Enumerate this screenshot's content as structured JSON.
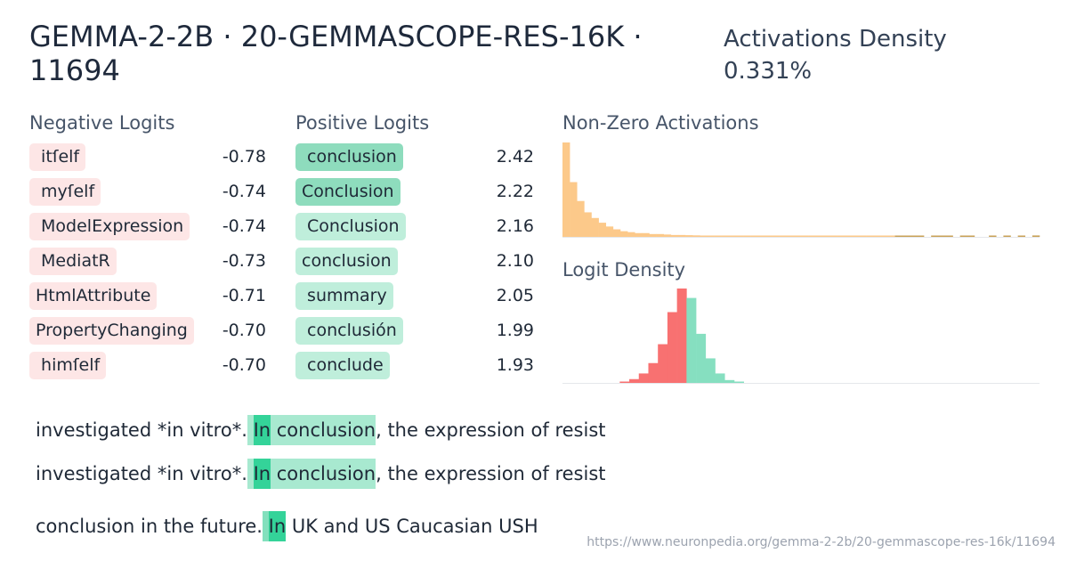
{
  "header": {
    "title": "GEMMA-2-2B · 20-GEMMASCOPE-RES-16K · 11694",
    "density_label": "Activations Density",
    "density_value": "0.331%"
  },
  "negative_logits": {
    "title": "Negative Logits",
    "items": [
      {
        "token": " itſelf",
        "value": "-0.78"
      },
      {
        "token": " myſelf",
        "value": "-0.74"
      },
      {
        "token": " ModelExpression",
        "value": "-0.74"
      },
      {
        "token": " MediatR",
        "value": "-0.73"
      },
      {
        "token": "HtmlAttribute",
        "value": "-0.71"
      },
      {
        "token": "PropertyChanging",
        "value": "-0.70"
      },
      {
        "token": " himſelf",
        "value": "-0.70"
      }
    ]
  },
  "positive_logits": {
    "title": "Positive Logits",
    "items": [
      {
        "token": " conclusion",
        "value": "2.42"
      },
      {
        "token": "Conclusion",
        "value": "2.22"
      },
      {
        "token": " Conclusion",
        "value": "2.16"
      },
      {
        "token": "conclusion",
        "value": "2.10"
      },
      {
        "token": " summary",
        "value": "2.05"
      },
      {
        "token": " conclusión",
        "value": "1.99"
      },
      {
        "token": " conclude",
        "value": "1.93"
      }
    ]
  },
  "nonzero_activations": {
    "title": "Non-Zero Activations",
    "bars": [
      1.0,
      0.58,
      0.38,
      0.26,
      0.2,
      0.15,
      0.11,
      0.08,
      0.06,
      0.05,
      0.04,
      0.04,
      0.03,
      0.03,
      0.025,
      0.02,
      0.02,
      0.018,
      0.016,
      0.014,
      0.013,
      0.012,
      0.011,
      0.01,
      0.01,
      0.01,
      0.009,
      0.009,
      0.008,
      0.008,
      0.008,
      0.008,
      0.007,
      0.007,
      0.007,
      0.007,
      0.006,
      0.006,
      0.006,
      0.006,
      0.006,
      0.005,
      0.005,
      0.005,
      0.005,
      0.005,
      0.005,
      0.005,
      0.005,
      0.005,
      0.0,
      0.005,
      0.005,
      0.005,
      0.0,
      0.006,
      0.006,
      0.0,
      0.0,
      0.005,
      0.0,
      0.004,
      0.0,
      0.01,
      0.0,
      0.015
    ],
    "color_light": "#fcc98a",
    "color_dark": "#c9a257"
  },
  "logit_density": {
    "title": "Logit Density",
    "bars": [
      0.0,
      0.0,
      0.0,
      0.0,
      0.0,
      0.0,
      0.01,
      0.04,
      0.1,
      0.21,
      0.41,
      0.75,
      1.0,
      0.9,
      0.52,
      0.26,
      0.1,
      0.03,
      0.01,
      0.0,
      0.0,
      0.0,
      0.0,
      0.0,
      0.0,
      0.0,
      0.0,
      0.0,
      0.0,
      0.0,
      0.0,
      0.0,
      0.0,
      0.0,
      0.0,
      0.0,
      0.0,
      0.0,
      0.0,
      0.0,
      0.0,
      0.0,
      0.0,
      0.0,
      0.0,
      0.0,
      0.0,
      0.0,
      0.0,
      0.0
    ],
    "split_index": 13,
    "color_negative": "#f87171",
    "color_positive": "#86dfc0"
  },
  "examples": [
    {
      "before": "investigated *in vitro*.",
      "t1": " ",
      "t2": "In",
      "t3": " conclusion",
      "after": ", the expression of resist"
    },
    {
      "before": "investigated *in vitro*.",
      "t1": " ",
      "t2": "In",
      "t3": " conclusion",
      "after": ", the expression of resist"
    },
    {
      "before": "conclusion in the future.",
      "t1": " ",
      "t2": "In",
      "t3": "",
      "after": " UK and US Caucasian USH"
    }
  ],
  "footer": {
    "url": "https://www.neuronpedia.org/gemma-2-2b/20-gemmascope-res-16k/11694"
  }
}
